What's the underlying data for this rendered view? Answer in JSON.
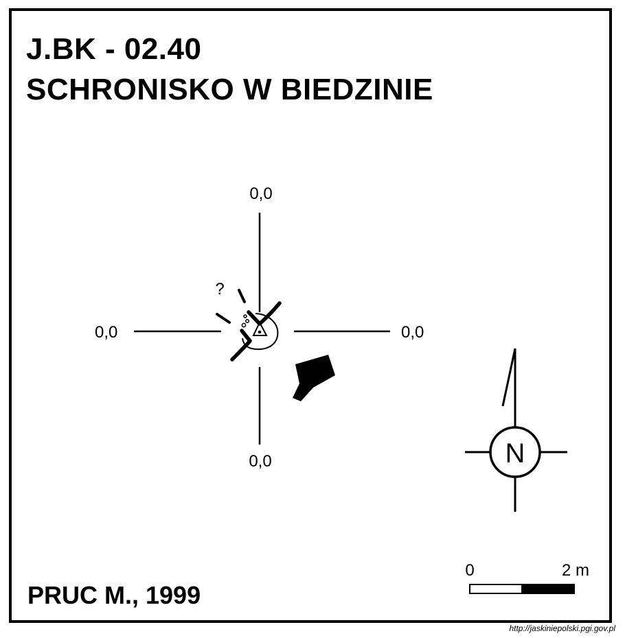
{
  "title": {
    "code": "J.BK - 02.40",
    "name": "SCHRONISKO W BIEDZINIE"
  },
  "author": "PRUC M., 1999",
  "source_url": "http://jaskiniepolski.pgi.gov.pl",
  "profile_labels": {
    "top": "0,0",
    "left": "0,0",
    "right": "0,0",
    "bottom": "0,0"
  },
  "question_mark": "?",
  "north": {
    "letter": "N"
  },
  "scale_bar": {
    "start_label": "0",
    "end_label": "2 m"
  }
}
